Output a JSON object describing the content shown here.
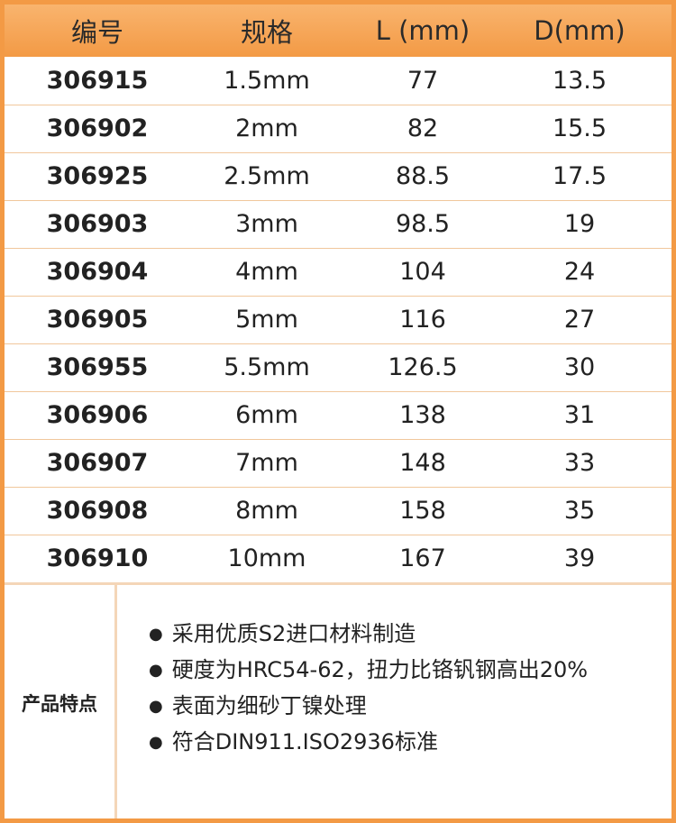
{
  "table": {
    "header": [
      "编号",
      "规格",
      "L (mm)",
      "D(mm)"
    ],
    "rows": [
      [
        "306915",
        "1.5mm",
        "77",
        "13.5"
      ],
      [
        "306902",
        "2mm",
        "82",
        "15.5"
      ],
      [
        "306925",
        "2.5mm",
        "88.5",
        "17.5"
      ],
      [
        "306903",
        "3mm",
        "98.5",
        "19"
      ],
      [
        "306904",
        "4mm",
        "104",
        "24"
      ],
      [
        "306905",
        "5mm",
        "116",
        "27"
      ],
      [
        "306955",
        "5.5mm",
        "126.5",
        "30"
      ],
      [
        "306906",
        "6mm",
        "138",
        "31"
      ],
      [
        "306907",
        "7mm",
        "148",
        "33"
      ],
      [
        "306908",
        "8mm",
        "158",
        "35"
      ],
      [
        "306910",
        "10mm",
        "167",
        "39"
      ]
    ]
  },
  "features": {
    "label": "产品特点",
    "items": [
      "采用优质S2进口材料制造",
      "硬度为HRC54-62，扭力比铬钒钢高出20%",
      "表面为细砂丁镍处理",
      "符合DIN911.ISO2936标准"
    ]
  }
}
